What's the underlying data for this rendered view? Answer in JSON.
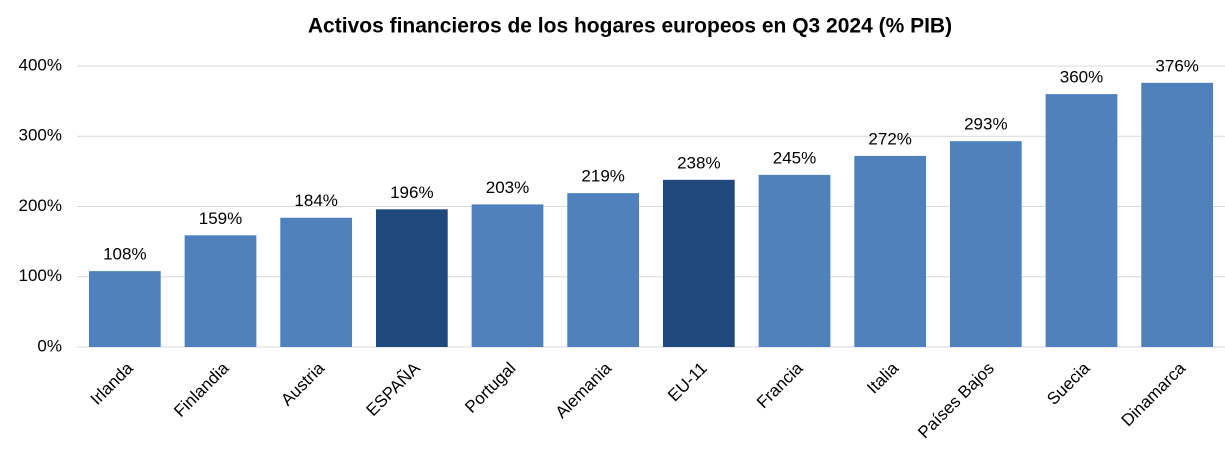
{
  "chart_data": {
    "type": "bar",
    "title": "Activos financieros de los hogares europeos en Q3 2024 (% PIB)",
    "categories": [
      "Irlanda",
      "Finlandia",
      "Austria",
      "ESPAÑA",
      "Portugal",
      "Alemania",
      "EU-11",
      "Francia",
      "Italia",
      "Países Bajos",
      "Suecia",
      "Dinamarca"
    ],
    "values": [
      108,
      159,
      184,
      196,
      203,
      219,
      238,
      245,
      272,
      293,
      360,
      376
    ],
    "value_labels": [
      "108%",
      "159%",
      "184%",
      "196%",
      "203%",
      "219%",
      "238%",
      "245%",
      "272%",
      "293%",
      "360%",
      "376%"
    ],
    "colors": [
      "#4f81bd",
      "#4f81bd",
      "#4f81bd",
      "#1f497d",
      "#4f81bd",
      "#4f81bd",
      "#1f497d",
      "#4f81bd",
      "#4f81bd",
      "#4f81bd",
      "#4f81bd",
      "#4f81bd"
    ],
    "ylim": [
      0,
      400
    ],
    "yticks": [
      {
        "value": 0,
        "label": "0%"
      },
      {
        "value": 100,
        "label": "100%"
      },
      {
        "value": 200,
        "label": "200%"
      },
      {
        "value": 300,
        "label": "300%"
      },
      {
        "value": 400,
        "label": "400%"
      }
    ],
    "grid": true
  }
}
